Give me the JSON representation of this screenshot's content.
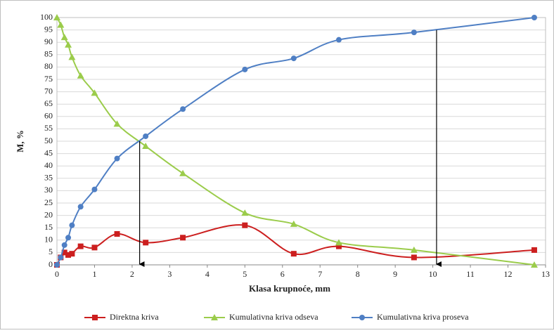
{
  "chart_data": {
    "type": "line",
    "smooth": true,
    "x_label": "Klasa krupnoće, mm",
    "y_label": "M, %",
    "x": [
      0,
      0.1,
      0.2,
      0.3,
      0.4,
      0.63,
      1.0,
      1.6,
      2.36,
      3.35,
      5,
      6.3,
      7.5,
      9.5,
      12.7
    ],
    "series": [
      {
        "name": "Direktna kriva",
        "color": "#cc1f1f",
        "marker": "square",
        "values": [
          0,
          3,
          5,
          4,
          4.5,
          7.5,
          7,
          12.5,
          9,
          11,
          16,
          4.5,
          7.5,
          3,
          6
        ]
      },
      {
        "name": "Kumulativna kriva odseva",
        "color": "#9bcc4b",
        "marker": "triangle",
        "values": [
          100,
          97,
          92,
          89,
          84,
          76.5,
          69.5,
          57,
          48,
          37,
          21,
          16.5,
          9,
          6,
          0
        ]
      },
      {
        "name": "Kumulativna kriva proseva",
        "color": "#4f7fc4",
        "marker": "circle",
        "values": [
          0,
          3,
          8,
          11,
          16,
          23.5,
          30.5,
          43,
          52,
          63,
          79,
          83.5,
          91,
          94,
          100
        ]
      }
    ],
    "arrows": [
      {
        "x": 2.2,
        "y": 50
      },
      {
        "x": 10.1,
        "y": 95
      }
    ],
    "xlim": [
      0,
      13
    ],
    "xticks": [
      0,
      1,
      2,
      3,
      4,
      5,
      6,
      7,
      8,
      9,
      10,
      11,
      12,
      13
    ],
    "ylim": [
      0,
      100
    ],
    "yticks": [
      0,
      5,
      10,
      15,
      20,
      25,
      30,
      35,
      40,
      45,
      50,
      55,
      60,
      65,
      70,
      75,
      80,
      85,
      90,
      95,
      100
    ],
    "grid": true,
    "legend": "bottom"
  }
}
